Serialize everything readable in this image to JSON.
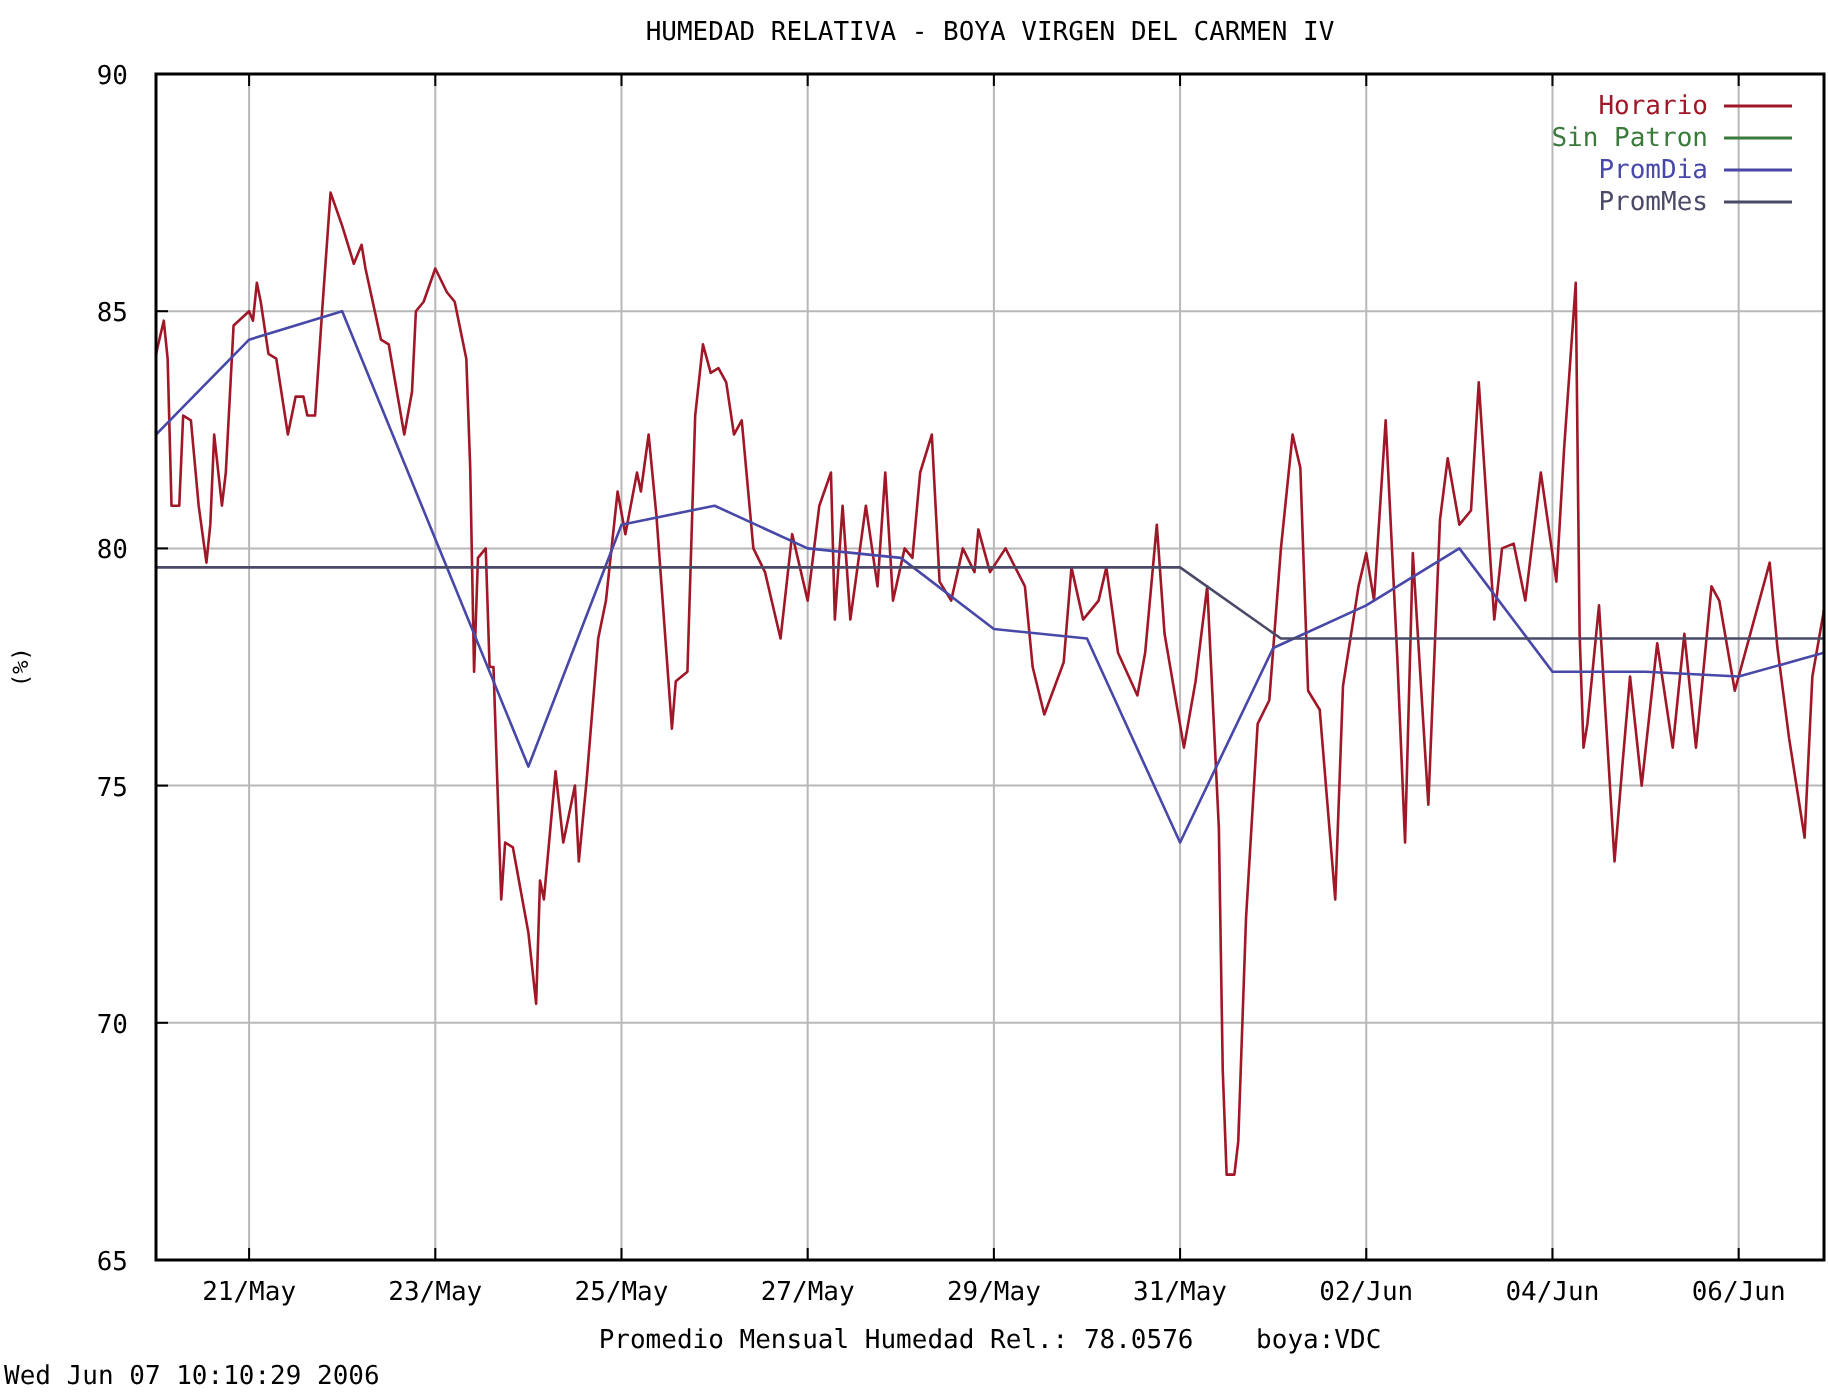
{
  "chart_data": {
    "type": "line",
    "title": "HUMEDAD RELATIVA - BOYA VIRGEN DEL CARMEN IV",
    "ylabel": "(%)",
    "xlim": [
      "2006-05-20T00:00",
      "2006-06-06T22:00"
    ],
    "xticks": [
      {
        "value": "2006-05-21",
        "label": "21/May"
      },
      {
        "value": "2006-05-23",
        "label": "23/May"
      },
      {
        "value": "2006-05-25",
        "label": "25/May"
      },
      {
        "value": "2006-05-27",
        "label": "27/May"
      },
      {
        "value": "2006-05-29",
        "label": "29/May"
      },
      {
        "value": "2006-05-31",
        "label": "31/May"
      },
      {
        "value": "2006-06-02",
        "label": "02/Jun"
      },
      {
        "value": "2006-06-04",
        "label": "04/Jun"
      },
      {
        "value": "2006-06-06",
        "label": "06/Jun"
      }
    ],
    "ylim": [
      65,
      90
    ],
    "yticks": [
      65,
      70,
      75,
      80,
      85,
      90
    ],
    "grid": true,
    "legend": "top right",
    "series": [
      {
        "name": "Horario",
        "color": "#a01828",
        "x": [
          "2006-05-20T00:00",
          "2006-05-20T02:00",
          "2006-05-20T03:00",
          "2006-05-20T04:00",
          "2006-05-20T06:00",
          "2006-05-20T07:00",
          "2006-05-20T09:00",
          "2006-05-20T11:00",
          "2006-05-20T13:00",
          "2006-05-20T14:00",
          "2006-05-20T15:00",
          "2006-05-20T17:00",
          "2006-05-20T18:00",
          "2006-05-20T20:00",
          "2006-05-21T00:00",
          "2006-05-21T01:00",
          "2006-05-21T02:00",
          "2006-05-21T03:00",
          "2006-05-21T05:00",
          "2006-05-21T07:00",
          "2006-05-21T10:00",
          "2006-05-21T12:00",
          "2006-05-21T14:00",
          "2006-05-21T15:00",
          "2006-05-21T17:00",
          "2006-05-21T19:00",
          "2006-05-21T21:00",
          "2006-05-22T00:00",
          "2006-05-22T03:00",
          "2006-05-22T05:00",
          "2006-05-22T06:00",
          "2006-05-22T10:00",
          "2006-05-22T12:00",
          "2006-05-22T16:00",
          "2006-05-22T18:00",
          "2006-05-22T19:00",
          "2006-05-22T21:00",
          "2006-05-23T00:00",
          "2006-05-23T03:00",
          "2006-05-23T05:00",
          "2006-05-23T08:00",
          "2006-05-23T09:00",
          "2006-05-23T10:00",
          "2006-05-23T11:00",
          "2006-05-23T13:00",
          "2006-05-23T14:00",
          "2006-05-23T15:00",
          "2006-05-23T17:00",
          "2006-05-23T18:00",
          "2006-05-23T20:00",
          "2006-05-24T00:00",
          "2006-05-24T02:00",
          "2006-05-24T03:00",
          "2006-05-24T04:00",
          "2006-05-24T07:00",
          "2006-05-24T09:00",
          "2006-05-24T12:00",
          "2006-05-24T13:00",
          "2006-05-24T15:00",
          "2006-05-24T18:00",
          "2006-05-24T20:00",
          "2006-05-24T23:00",
          "2006-05-25T01:00",
          "2006-05-25T04:00",
          "2006-05-25T05:00",
          "2006-05-25T07:00",
          "2006-05-25T09:00",
          "2006-05-25T13:00",
          "2006-05-25T14:00",
          "2006-05-25T17:00",
          "2006-05-25T19:00",
          "2006-05-25T21:00",
          "2006-05-25T23:00",
          "2006-05-26T01:00",
          "2006-05-26T03:00",
          "2006-05-26T05:00",
          "2006-05-26T07:00",
          "2006-05-26T10:00",
          "2006-05-26T13:00",
          "2006-05-26T17:00",
          "2006-05-26T20:00",
          "2006-05-27T00:00",
          "2006-05-27T03:00",
          "2006-05-27T06:00",
          "2006-05-27T07:00",
          "2006-05-27T09:00",
          "2006-05-27T11:00",
          "2006-05-27T15:00",
          "2006-05-27T18:00",
          "2006-05-27T20:00",
          "2006-05-27T22:00",
          "2006-05-28T01:00",
          "2006-05-28T03:00",
          "2006-05-28T05:00",
          "2006-05-28T08:00",
          "2006-05-28T10:00",
          "2006-05-28T13:00",
          "2006-05-28T16:00",
          "2006-05-28T19:00",
          "2006-05-28T20:00",
          "2006-05-28T23:00",
          "2006-05-29T03:00",
          "2006-05-29T08:00",
          "2006-05-29T10:00",
          "2006-05-29T13:00",
          "2006-05-29T18:00",
          "2006-05-29T20:00",
          "2006-05-29T23:00",
          "2006-05-30T03:00",
          "2006-05-30T05:00",
          "2006-05-30T08:00",
          "2006-05-30T13:00",
          "2006-05-30T15:00",
          "2006-05-30T18:00",
          "2006-05-30T20:00",
          "2006-05-31T01:00",
          "2006-05-31T04:00",
          "2006-05-31T07:00",
          "2006-05-31T10:00",
          "2006-05-31T11:00",
          "2006-05-31T12:00",
          "2006-05-31T14:00",
          "2006-05-31T15:00",
          "2006-05-31T17:00",
          "2006-05-31T20:00",
          "2006-05-31T23:00",
          "2006-06-01T02:00",
          "2006-06-01T05:00",
          "2006-06-01T07:00",
          "2006-06-01T09:00",
          "2006-06-01T12:00",
          "2006-06-01T16:00",
          "2006-06-01T18:00",
          "2006-06-01T22:00",
          "2006-06-02T00:00",
          "2006-06-02T02:00",
          "2006-06-02T05:00",
          "2006-06-02T08:00",
          "2006-06-02T10:00",
          "2006-06-02T12:00",
          "2006-06-02T16:00",
          "2006-06-02T19:00",
          "2006-06-02T21:00",
          "2006-06-03T00:00",
          "2006-06-03T03:00",
          "2006-06-03T05:00",
          "2006-06-03T09:00",
          "2006-06-03T11:00",
          "2006-06-03T14:00",
          "2006-06-03T17:00",
          "2006-06-03T21:00",
          "2006-06-04T01:00",
          "2006-06-04T03:00",
          "2006-06-04T06:00",
          "2006-06-04T07:00",
          "2006-06-04T08:00",
          "2006-06-04T09:00",
          "2006-06-04T12:00",
          "2006-06-04T16:00",
          "2006-06-04T18:00",
          "2006-06-04T20:00",
          "2006-06-04T23:00",
          "2006-06-05T03:00",
          "2006-06-05T07:00",
          "2006-06-05T10:00",
          "2006-06-05T13:00",
          "2006-06-05T17:00",
          "2006-06-05T19:00",
          "2006-06-05T23:00",
          "2006-06-06T03:00",
          "2006-06-06T08:00",
          "2006-06-06T10:00",
          "2006-06-06T13:00",
          "2006-06-06T17:00",
          "2006-06-06T19:00",
          "2006-06-06T22:00"
        ],
        "values": [
          84.1,
          84.8,
          84.0,
          80.9,
          80.9,
          82.8,
          82.7,
          80.9,
          79.7,
          80.5,
          82.4,
          80.9,
          81.6,
          84.7,
          85.0,
          84.8,
          85.6,
          85.2,
          84.1,
          84.0,
          82.4,
          83.2,
          83.2,
          82.8,
          82.8,
          85.2,
          87.5,
          86.8,
          86.0,
          86.4,
          85.9,
          84.4,
          84.3,
          82.4,
          83.3,
          85.0,
          85.2,
          85.9,
          85.4,
          85.2,
          84.0,
          81.7,
          77.4,
          79.8,
          80.0,
          77.5,
          77.5,
          72.6,
          73.8,
          73.7,
          71.9,
          70.4,
          73.0,
          72.6,
          75.3,
          73.8,
          75.0,
          73.4,
          75.1,
          78.1,
          78.9,
          81.2,
          80.3,
          81.6,
          81.2,
          82.4,
          80.7,
          76.2,
          77.2,
          77.4,
          82.8,
          84.3,
          83.7,
          83.8,
          83.5,
          82.4,
          82.7,
          80.0,
          79.5,
          78.1,
          80.3,
          78.9,
          80.9,
          81.6,
          78.5,
          80.9,
          78.5,
          80.9,
          79.2,
          81.6,
          78.9,
          80.0,
          79.8,
          81.6,
          82.4,
          79.3,
          78.9,
          80.0,
          79.5,
          80.4,
          79.5,
          80.0,
          79.2,
          77.5,
          76.5,
          77.6,
          79.6,
          78.5,
          78.9,
          79.6,
          77.8,
          76.9,
          77.8,
          80.5,
          78.2,
          75.8,
          77.2,
          79.2,
          74.1,
          69.0,
          66.8,
          66.8,
          67.5,
          72.2,
          76.3,
          76.8,
          80.0,
          82.4,
          81.7,
          77.0,
          76.6,
          72.6,
          77.1,
          79.2,
          79.9,
          78.9,
          82.7,
          77.7,
          73.8,
          79.9,
          74.6,
          80.6,
          81.9,
          80.5,
          80.8,
          83.5,
          78.5,
          80.0,
          80.1,
          78.9,
          81.6,
          79.3,
          82.1,
          85.6,
          78.2,
          75.8,
          76.3,
          78.8,
          73.4,
          75.4,
          77.3,
          75.0,
          78.0,
          75.8,
          78.2,
          75.8,
          79.2,
          78.9,
          77.0,
          78.2,
          79.7,
          77.9,
          76.0,
          73.9,
          77.3,
          78.7
        ]
      },
      {
        "name": "Sin Patron",
        "color": "#3a7a3a"
      },
      {
        "name": "PromDia",
        "color": "#4848a8",
        "x": [
          "2006-05-20",
          "2006-05-21",
          "2006-05-22",
          "2006-05-23",
          "2006-05-24",
          "2006-05-25",
          "2006-05-26",
          "2006-05-27",
          "2006-05-28",
          "2006-05-29",
          "2006-05-30",
          "2006-05-31",
          "2006-06-01",
          "2006-06-02",
          "2006-06-03",
          "2006-06-04",
          "2006-06-05",
          "2006-06-06",
          "2006-06-06T22:00"
        ],
        "values": [
          82.4,
          84.4,
          85.0,
          80.2,
          75.4,
          80.5,
          80.9,
          80.0,
          79.8,
          78.3,
          78.1,
          73.8,
          77.9,
          78.8,
          80.0,
          77.4,
          77.4,
          77.3,
          77.8
        ]
      },
      {
        "name": "PromMes",
        "color": "#4a4a68",
        "x": [
          "2006-05-20",
          "2006-05-31",
          "2006-06-01T02:00",
          "2006-06-06T22:00"
        ],
        "values": [
          79.6,
          79.6,
          78.1,
          78.1
        ]
      }
    ],
    "annotations": [
      "Promedio Mensual Humedad Rel.: 78.0576    boya:VDC",
      "Wed Jun 07 10:10:29 2006"
    ]
  }
}
